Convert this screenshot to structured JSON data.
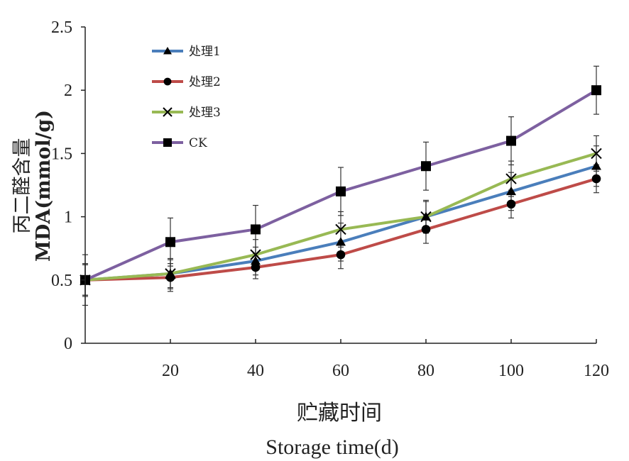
{
  "chart_data": {
    "type": "line",
    "title": "",
    "xlabel_cn": "贮藏时间",
    "xlabel_en": "Storage time(d)",
    "ylabel_cn": "丙二醛含量",
    "ylabel_en": "MDA(mmol/g)",
    "x": [
      0,
      20,
      40,
      60,
      80,
      100,
      120
    ],
    "x_tick_labels": [
      "20",
      "40",
      "60",
      "80",
      "100",
      "120"
    ],
    "x_tick_values": [
      20,
      40,
      60,
      80,
      100,
      120
    ],
    "xlim": [
      0,
      120
    ],
    "y_tick_labels": [
      "0",
      "0.5",
      "1",
      "1.5",
      "2",
      "2.5"
    ],
    "y_tick_values": [
      0,
      0.5,
      1,
      1.5,
      2,
      2.5
    ],
    "ylim": [
      0,
      2.5
    ],
    "legend_position": "top-left",
    "grid": false,
    "series": [
      {
        "name": "处理1",
        "color": "#4a7ebb",
        "marker": "triangle",
        "values": [
          0.5,
          0.55,
          0.65,
          0.8,
          1.0,
          1.2,
          1.4
        ],
        "errors": [
          0.13,
          0.11,
          0.11,
          0.15,
          0.13,
          0.15,
          0.16
        ]
      },
      {
        "name": "处理2",
        "color": "#be4b48",
        "marker": "circle",
        "values": [
          0.5,
          0.52,
          0.6,
          0.7,
          0.9,
          1.1,
          1.3
        ],
        "errors": [
          0.12,
          0.11,
          0.09,
          0.11,
          0.11,
          0.11,
          0.11
        ]
      },
      {
        "name": "处理3",
        "color": "#98b954",
        "marker": "x",
        "values": [
          0.5,
          0.55,
          0.7,
          0.9,
          1.0,
          1.3,
          1.5
        ],
        "errors": [
          0.12,
          0.12,
          0.12,
          0.14,
          0.12,
          0.14,
          0.14
        ]
      },
      {
        "name": "CK",
        "color": "#7d60a0",
        "marker": "square",
        "values": [
          0.5,
          0.8,
          0.9,
          1.2,
          1.4,
          1.6,
          2.0
        ],
        "errors": [
          0.2,
          0.19,
          0.19,
          0.19,
          0.19,
          0.19,
          0.19
        ]
      }
    ]
  }
}
